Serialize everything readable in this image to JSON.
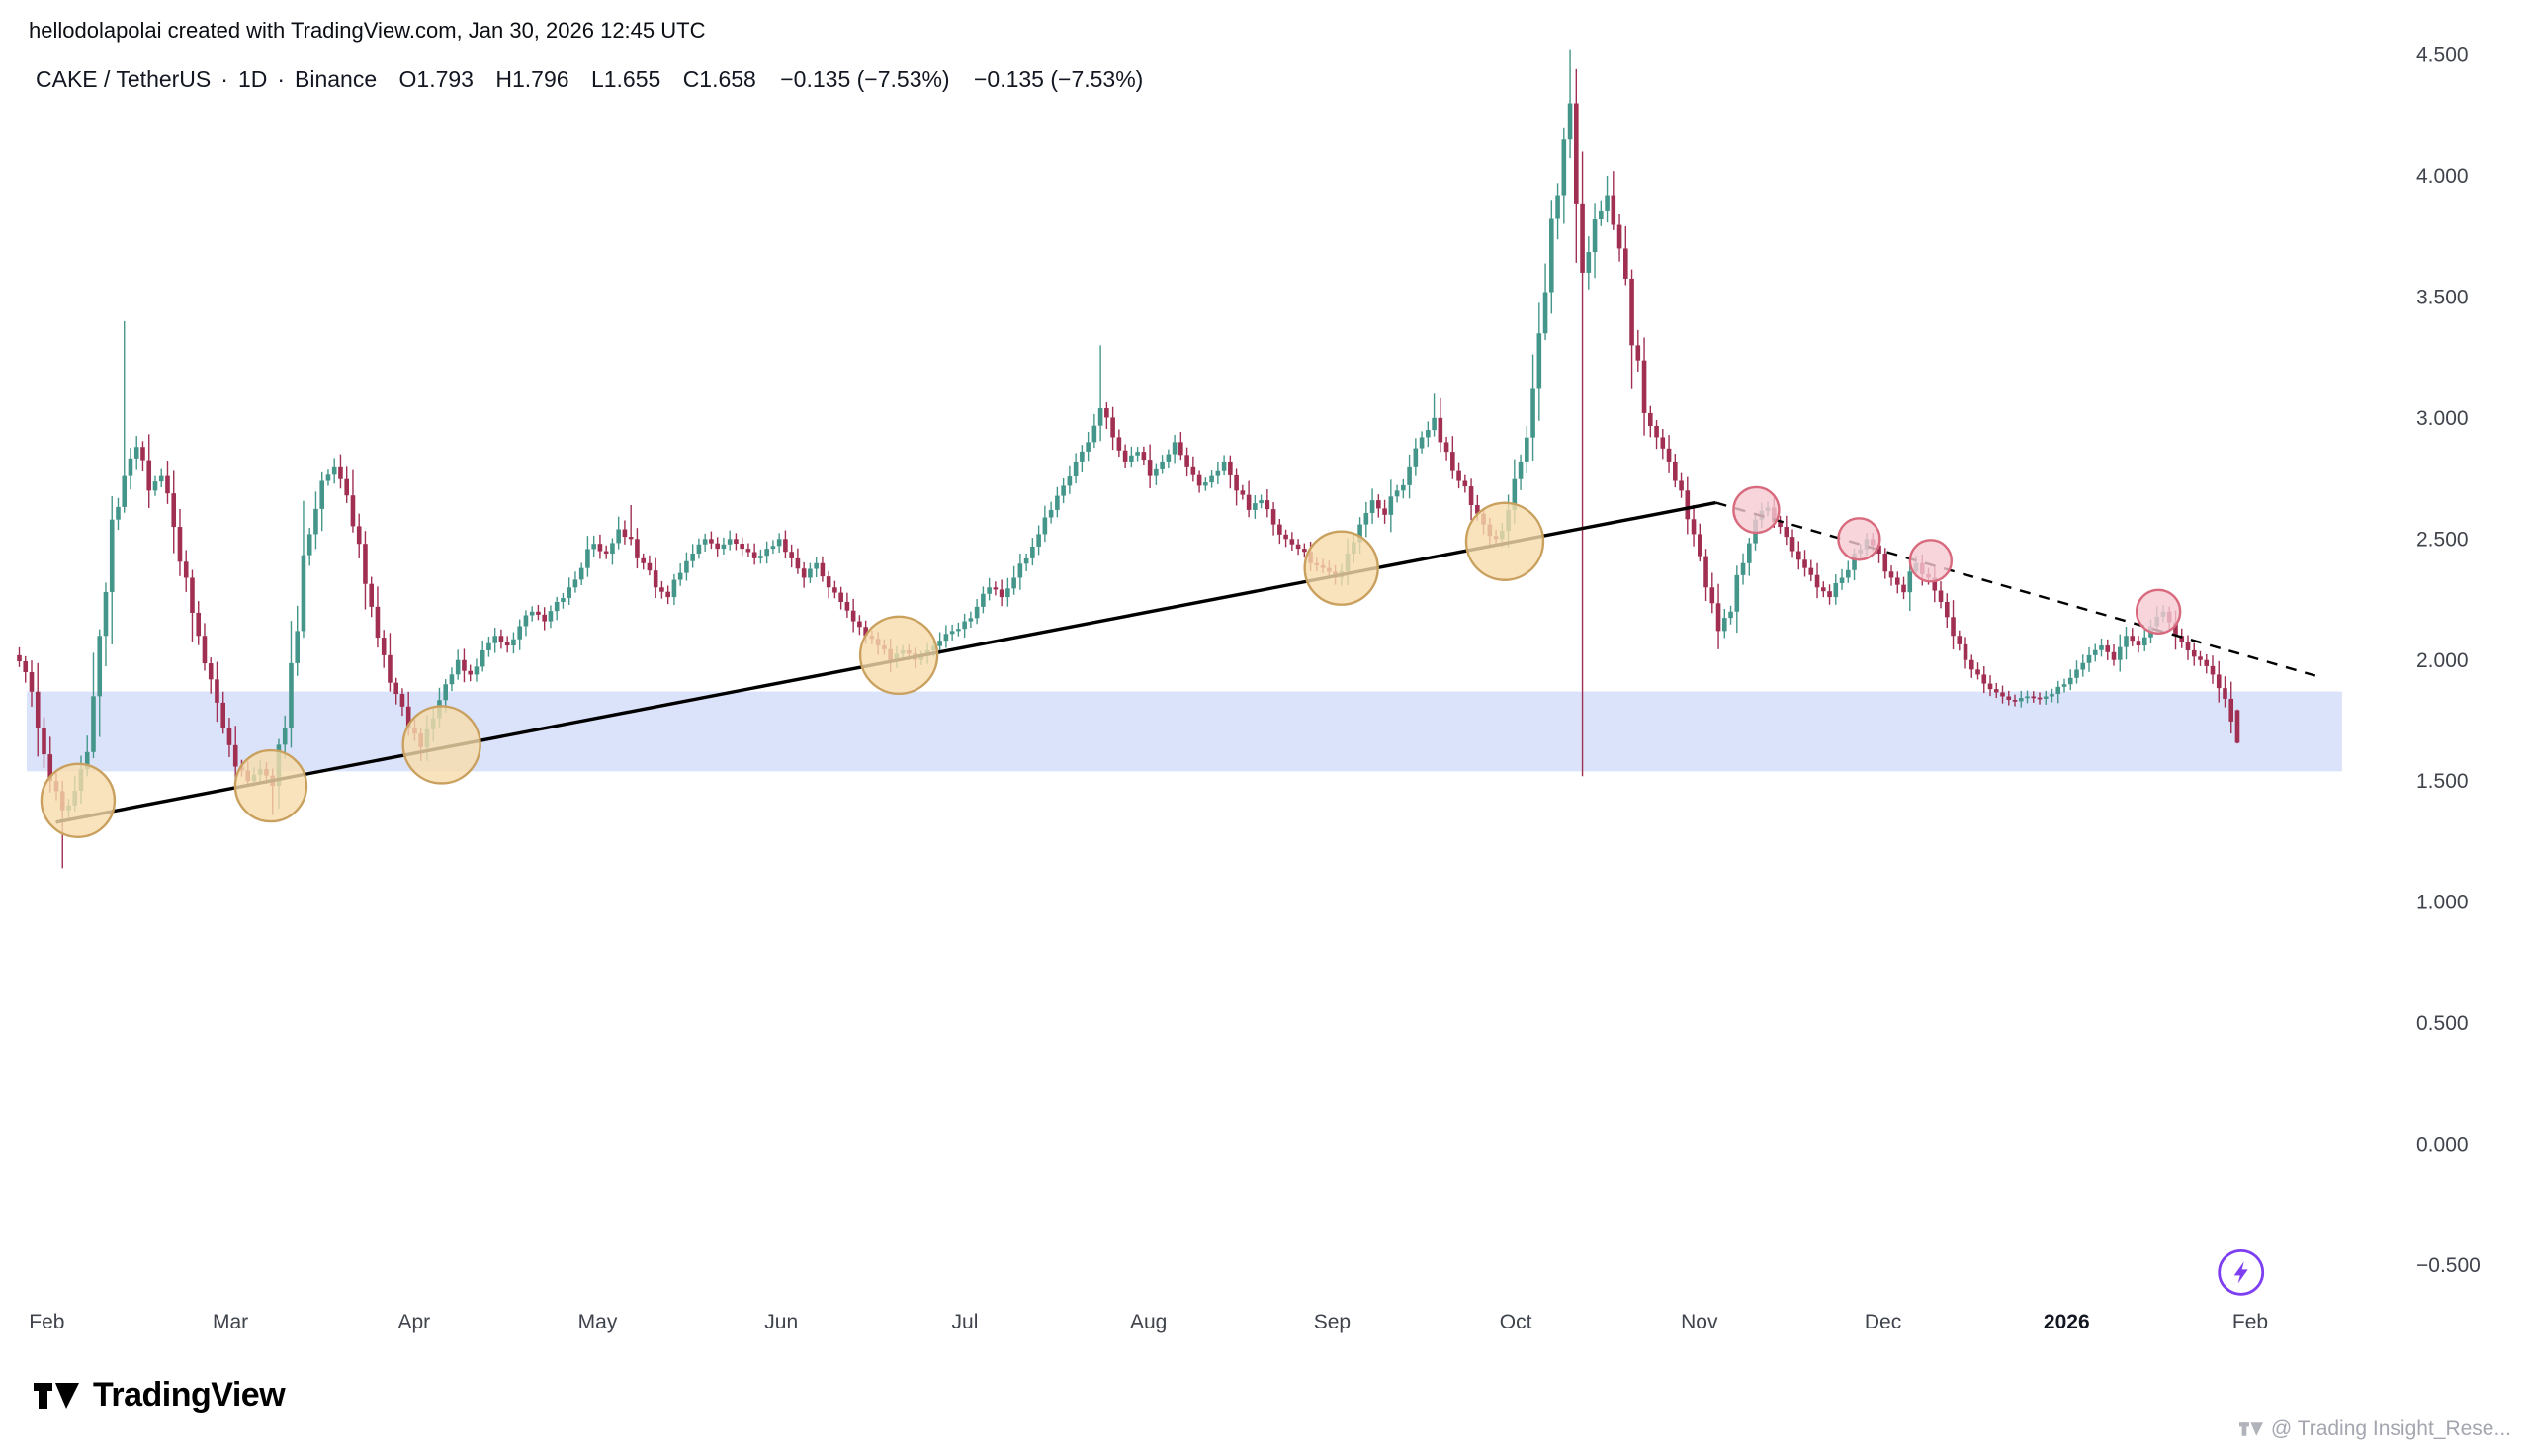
{
  "page": {
    "attribution": "hellodolapolai created with TradingView.com, Jan 30, 2026 12:45 UTC",
    "brand": "TradingView",
    "watermark": "@ Trading Insight_Rese..."
  },
  "header": {
    "symbol": "CAKE / TetherUS",
    "separator": "·",
    "interval": "1D",
    "exchange": "Binance",
    "open": "O1.793",
    "high": "H1.796",
    "low": "L1.655",
    "close": "C1.658",
    "change": "−0.135 (−7.53%)",
    "change_2": "−0.135 (−7.53%)"
  },
  "chart_data": {
    "type": "candlestick",
    "symbol": "CAKE / TetherUS",
    "interval": "1D",
    "exchange": "Binance",
    "last_ohlc": {
      "open": 1.793,
      "high": 1.796,
      "low": 1.655,
      "close": 1.658,
      "change": -0.135,
      "change_pct": -7.53
    },
    "x_axis": {
      "labels": [
        "Feb",
        "Mar",
        "Apr",
        "May",
        "Jun",
        "Jul",
        "Aug",
        "Sep",
        "Oct",
        "Nov",
        "Dec",
        "2026",
        "Feb"
      ],
      "bold_index": 11
    },
    "y_axis": {
      "labels": [
        "4.500",
        "4.000",
        "3.500",
        "3.000",
        "2.500",
        "2.000",
        "1.500",
        "1.000",
        "0.500",
        "0.000",
        "−0.500"
      ],
      "values": [
        4.5,
        4.0,
        3.5,
        3.0,
        2.5,
        2.0,
        1.5,
        1.0,
        0.5,
        0.0,
        -0.5
      ],
      "range": [
        -0.5,
        4.5
      ]
    },
    "grid": false,
    "legend_position": "top-left",
    "candles": {
      "open_first": 2.02,
      "closes_per_month": 15,
      "closes": [
        1.95,
        1.72,
        1.5,
        1.38,
        1.46,
        1.62,
        2.1,
        2.58,
        2.76,
        2.88,
        2.7,
        2.76,
        2.55,
        2.34,
        2.1,
        1.92,
        1.72,
        1.56,
        1.5,
        1.55,
        1.48,
        1.72,
        2.12,
        2.52,
        2.74,
        2.8,
        2.68,
        2.48,
        2.22,
        2.02,
        1.86,
        1.72,
        1.64,
        1.76,
        1.9,
        2.0,
        1.94,
        2.04,
        2.1,
        2.06,
        2.14,
        2.2,
        2.16,
        2.24,
        2.3,
        2.38,
        2.48,
        2.44,
        2.54,
        2.5,
        2.4,
        2.3,
        2.26,
        2.36,
        2.44,
        2.5,
        2.46,
        2.5,
        2.46,
        2.42,
        2.46,
        2.5,
        2.42,
        2.34,
        2.4,
        2.3,
        2.24,
        2.16,
        2.1,
        2.06,
        2.0,
        2.04,
        2.0,
        2.04,
        2.08,
        2.12,
        2.16,
        2.22,
        2.3,
        2.26,
        2.34,
        2.42,
        2.52,
        2.62,
        2.72,
        2.82,
        2.9,
        3.04,
        2.92,
        2.82,
        2.86,
        2.76,
        2.82,
        2.9,
        2.8,
        2.72,
        2.76,
        2.82,
        2.7,
        2.62,
        2.66,
        2.56,
        2.5,
        2.46,
        2.4,
        2.38,
        2.34,
        2.44,
        2.56,
        2.66,
        2.6,
        2.7,
        2.8,
        2.92,
        3.0,
        2.86,
        2.74,
        2.64,
        2.56,
        2.5,
        2.62,
        2.82,
        3.12,
        3.52,
        3.92,
        4.3,
        3.6,
        3.82,
        3.92,
        3.7,
        3.3,
        3.02,
        2.92,
        2.82,
        2.7,
        2.52,
        2.3,
        2.12,
        2.2,
        2.4,
        2.58,
        2.63,
        2.55,
        2.45,
        2.38,
        2.3,
        2.26,
        2.34,
        2.44,
        2.5,
        2.44,
        2.34,
        2.28,
        2.4,
        2.34,
        2.24,
        2.1,
        2.0,
        1.94,
        1.88,
        1.85,
        1.83,
        1.85,
        1.84,
        1.86,
        1.9,
        1.96,
        2.02,
        2.06,
        2.0,
        2.1,
        2.06,
        2.14,
        2.2,
        2.1,
        2.04,
        2.0,
        1.94,
        1.84,
        1.658
      ],
      "spikes": {
        "3": {
          "l": 1.14
        },
        "8": {
          "h": 3.4
        },
        "20": {
          "l": 1.36
        },
        "49": {
          "h": 2.64
        },
        "87": {
          "h": 3.3
        },
        "114": {
          "h": 3.1
        },
        "125": {
          "h": 4.52
        },
        "126": {
          "l": 1.52,
          "h": 4.1
        },
        "128": {
          "h": 4.0
        }
      },
      "last_candle": {
        "o": 1.793,
        "h": 1.796,
        "l": 1.655,
        "c": 1.658
      }
    },
    "overlays": {
      "support_zone": {
        "price_top": 1.87,
        "price_bottom": 1.54,
        "t_start": -0.11,
        "t_end": 12.5
      },
      "trendlines": [
        {
          "name": "ascending-support-trendline",
          "t1": 0.05,
          "p1": 1.33,
          "t2": 9.09,
          "p2": 2.65,
          "dashed": false
        },
        {
          "name": "descending-resistance-trendline",
          "t1": 9.09,
          "p1": 2.65,
          "t2": 12.38,
          "p2": 1.93,
          "dashed": true
        }
      ],
      "touch_circles": [
        {
          "t": 0.17,
          "price": 1.42,
          "r": 37,
          "type": "support"
        },
        {
          "t": 1.22,
          "price": 1.48,
          "r": 36,
          "type": "support"
        },
        {
          "t": 2.15,
          "price": 1.65,
          "r": 39,
          "type": "support"
        },
        {
          "t": 4.64,
          "price": 2.02,
          "r": 39,
          "type": "support"
        },
        {
          "t": 7.05,
          "price": 2.38,
          "r": 37,
          "type": "support"
        },
        {
          "t": 7.94,
          "price": 2.49,
          "r": 39,
          "type": "support"
        },
        {
          "t": 9.31,
          "price": 2.62,
          "r": 23,
          "type": "resistance"
        },
        {
          "t": 9.87,
          "price": 2.5,
          "r": 21,
          "type": "resistance"
        },
        {
          "t": 10.26,
          "price": 2.41,
          "r": 21,
          "type": "resistance"
        },
        {
          "t": 11.5,
          "price": 2.2,
          "r": 22,
          "type": "resistance"
        }
      ],
      "marker": {
        "t": 11.95,
        "price": -0.53,
        "name": "flash-idea-marker"
      }
    },
    "colors": {
      "up": "#45968a",
      "down": "#a02f52",
      "zone": "#dbe3fa",
      "trendline": "#000000",
      "support_circle_fill": "#f7dcab",
      "support_circle_stroke": "#c9a05e",
      "resistance_circle_fill": "#f6c9d2",
      "resistance_circle_stroke": "#d86a7e",
      "marker": "#7e3ff2",
      "axis_text": "#3f434c",
      "axis_text_bold": "#131722"
    }
  }
}
